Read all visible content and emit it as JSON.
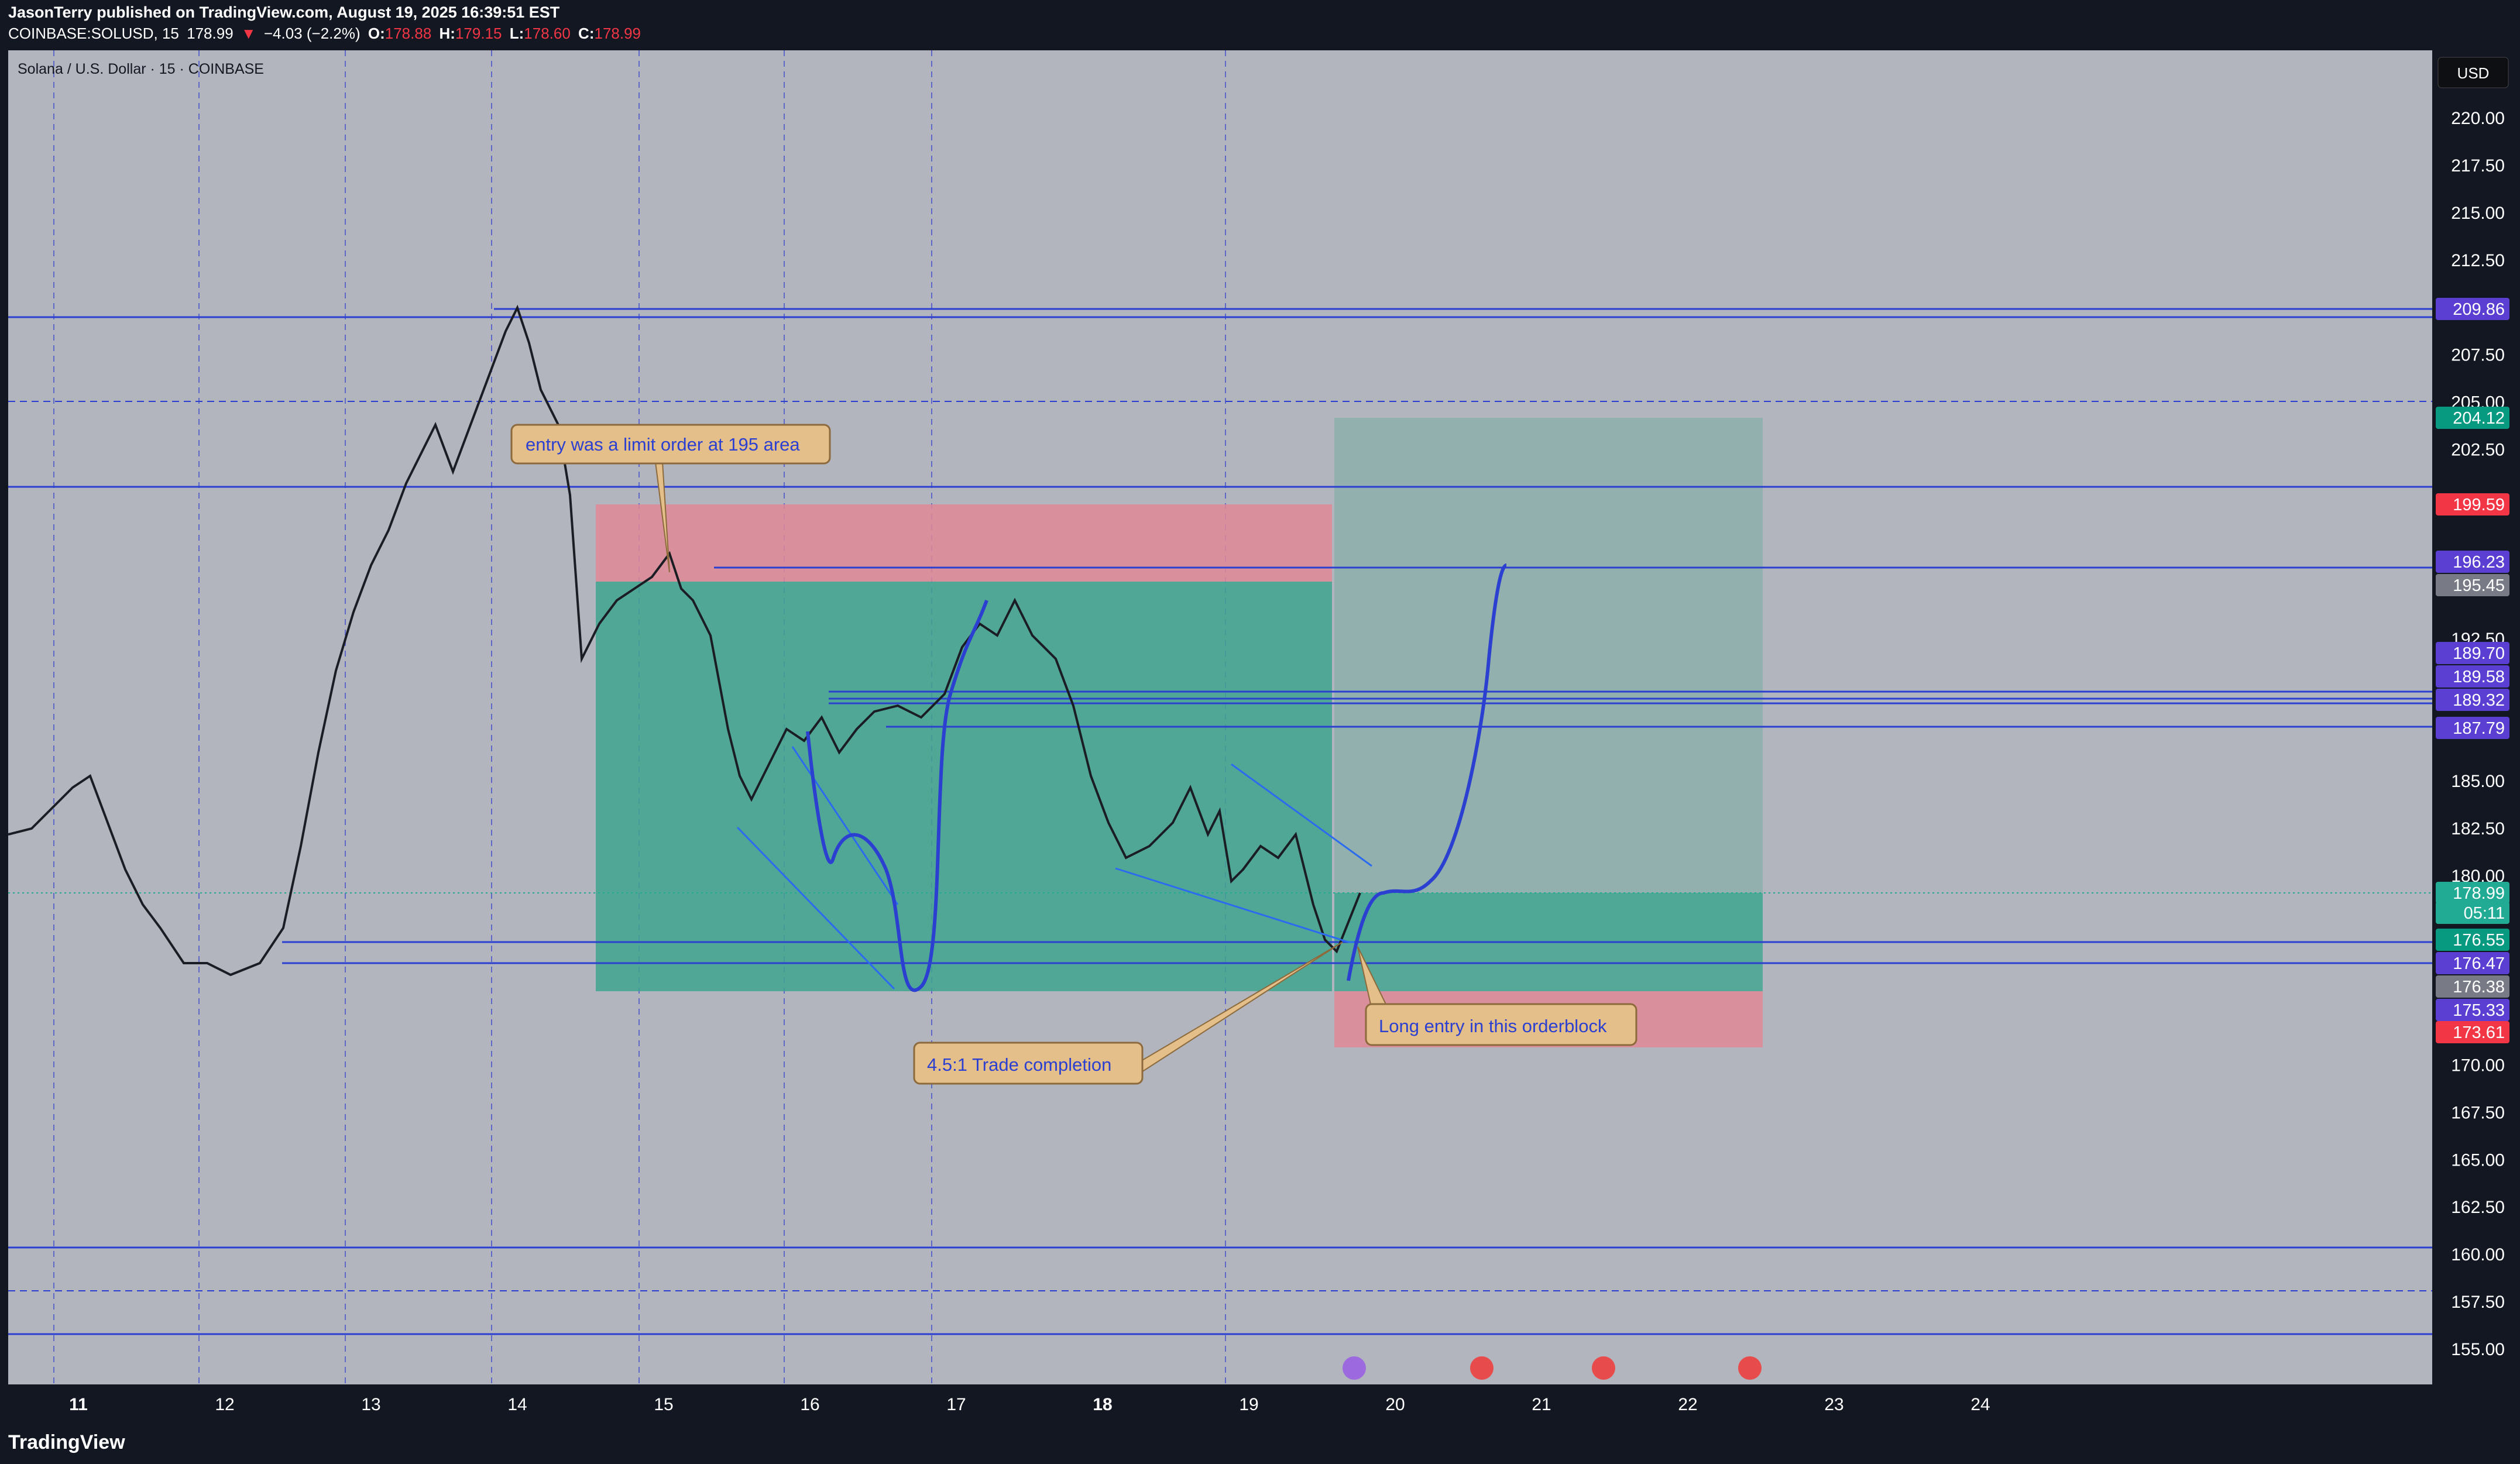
{
  "header": {
    "published_line": "JasonTerry published on TradingView.com, August 19, 2025 16:39:51 EST",
    "symbol": "COINBASE:SOLUSD, 15",
    "last": "178.99",
    "change_arrow": "▼",
    "change": "−4.03 (−2.2%)",
    "o_label": "O:",
    "o_value": "178.88",
    "h_label": "H:",
    "h_value": "179.15",
    "l_label": "L:",
    "l_value": "178.60",
    "c_label": "C:",
    "c_value": "178.99"
  },
  "chart": {
    "legend_title": "Solana / U.S. Dollar · 15 · COINBASE",
    "currency_button": "USD",
    "price_ticks": [
      "220.00",
      "217.50",
      "215.00",
      "212.50",
      "207.50",
      "205.00",
      "202.50",
      "192.50",
      "185.00",
      "182.50",
      "180.00",
      "170.00",
      "167.50",
      "165.00",
      "162.50",
      "160.00",
      "157.50",
      "155.00"
    ],
    "price_labels": [
      {
        "text": "209.86",
        "color": "#5b3fd3"
      },
      {
        "text": "204.12",
        "color": "#089981"
      },
      {
        "text": "199.59",
        "color": "#f23645"
      },
      {
        "text": "196.23",
        "color": "#5b3fd3"
      },
      {
        "text": "195.45",
        "color": "#787b86"
      },
      {
        "text": "189.70",
        "color": "#5b3fd3"
      },
      {
        "text": "189.58",
        "color": "#5b3fd3"
      },
      {
        "text": "189.32",
        "color": "#5b3fd3"
      },
      {
        "text": "187.79",
        "color": "#5b3fd3"
      },
      {
        "text": "178.99",
        "color": "#22ab94"
      },
      {
        "text": "05:11",
        "color": "#22ab94"
      },
      {
        "text": "176.55",
        "color": "#089981"
      },
      {
        "text": "176.47",
        "color": "#5b3fd3"
      },
      {
        "text": "176.38",
        "color": "#787b86"
      },
      {
        "text": "175.33",
        "color": "#5b3fd3"
      },
      {
        "text": "173.61",
        "color": "#f23645"
      }
    ],
    "time_ticks": [
      "11",
      "12",
      "13",
      "14",
      "15",
      "16",
      "17",
      "18",
      "19",
      "20",
      "21",
      "22",
      "23",
      "24"
    ],
    "annotations": {
      "entry_note": "entry was a limit order at 195 area",
      "trade_completion": "4.5:1 Trade completion",
      "long_entry": "Long entry in this orderblock"
    },
    "colors": {
      "background": "#b2b5be",
      "draw_line": "#2b3fd1",
      "profit_zone": "#3fa58f",
      "loss_zone": "#e08a96",
      "callout": "#e4bf8a"
    }
  },
  "footer": {
    "logo_text": "TradingView"
  }
}
